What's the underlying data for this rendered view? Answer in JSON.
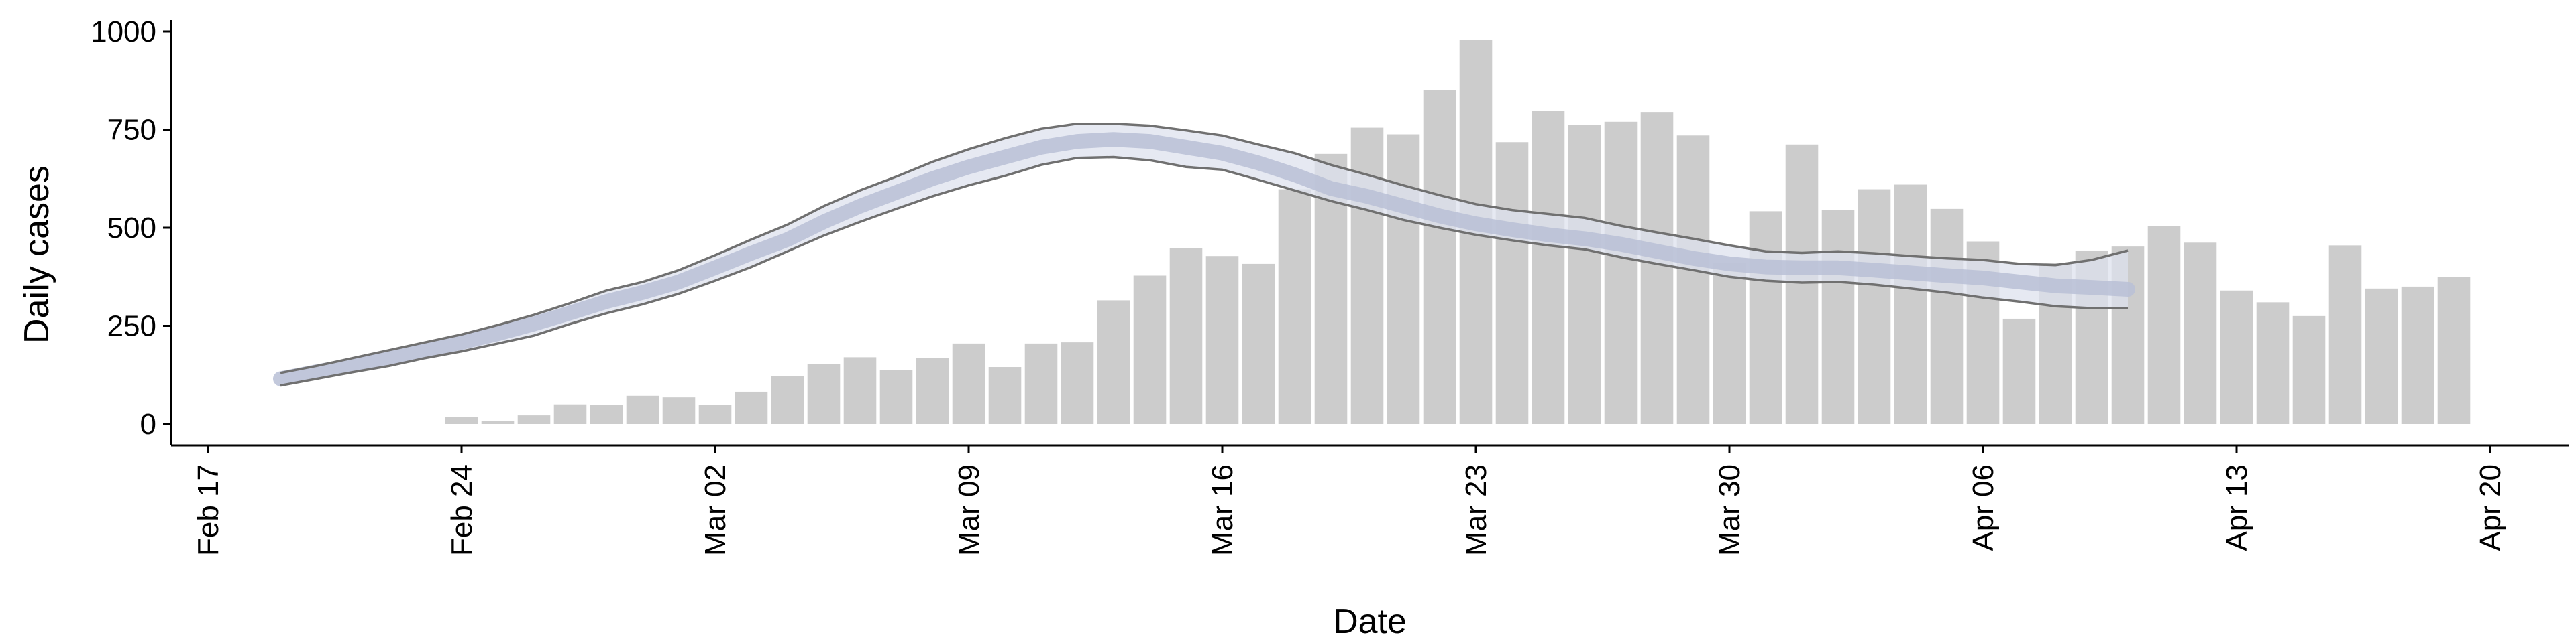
{
  "chart_data": {
    "type": "bar",
    "xlabel": "Date",
    "ylabel": "Daily cases",
    "ylim": [
      -50,
      1020
    ],
    "xlim": [
      "2020-02-17",
      "2020-04-21"
    ],
    "yticks": [
      0,
      250,
      500,
      750,
      1000
    ],
    "xticks": [
      "2020-02-17",
      "2020-02-24",
      "2020-03-02",
      "2020-03-09",
      "2020-03-16",
      "2020-03-23",
      "2020-03-30",
      "2020-04-06",
      "2020-04-13",
      "2020-04-20"
    ],
    "xtick_labels": [
      "Feb 17",
      "Feb 24",
      "Mar 02",
      "Mar 09",
      "Mar 16",
      "Mar 23",
      "Mar 30",
      "Apr 06",
      "Apr 13",
      "Apr 20"
    ],
    "grid": false,
    "legend": "none",
    "colors": {
      "bars": "#cccccc",
      "band": "#dde2ee",
      "median": "#b8c0d6",
      "bounds": "#707070",
      "axis": "#000000"
    },
    "bars": {
      "dates": [
        "2020-02-24",
        "2020-02-25",
        "2020-02-26",
        "2020-02-27",
        "2020-02-28",
        "2020-02-29",
        "2020-03-01",
        "2020-03-02",
        "2020-03-03",
        "2020-03-04",
        "2020-03-05",
        "2020-03-06",
        "2020-03-07",
        "2020-03-08",
        "2020-03-09",
        "2020-03-10",
        "2020-03-11",
        "2020-03-12",
        "2020-03-13",
        "2020-03-14",
        "2020-03-15",
        "2020-03-16",
        "2020-03-17",
        "2020-03-18",
        "2020-03-19",
        "2020-03-20",
        "2020-03-21",
        "2020-03-22",
        "2020-03-23",
        "2020-03-24",
        "2020-03-25",
        "2020-03-26",
        "2020-03-27",
        "2020-03-28",
        "2020-03-29",
        "2020-03-30",
        "2020-03-31",
        "2020-04-01",
        "2020-04-02",
        "2020-04-03",
        "2020-04-04",
        "2020-04-05",
        "2020-04-06",
        "2020-04-07",
        "2020-04-08",
        "2020-04-09",
        "2020-04-10",
        "2020-04-11",
        "2020-04-12",
        "2020-04-13",
        "2020-04-14",
        "2020-04-15",
        "2020-04-16",
        "2020-04-17",
        "2020-04-18",
        "2020-04-19"
      ],
      "values": [
        18,
        8,
        22,
        50,
        48,
        72,
        68,
        48,
        82,
        122,
        152,
        170,
        138,
        168,
        205,
        145,
        205,
        208,
        315,
        378,
        448,
        428,
        408,
        598,
        688,
        755,
        738,
        850,
        978,
        718,
        798,
        762,
        770,
        795,
        735,
        410,
        542,
        712,
        545,
        598,
        610,
        548,
        465,
        268,
        410,
        442,
        452,
        505,
        462,
        340,
        310,
        275,
        455,
        345,
        350,
        375
      ]
    },
    "estimate": {
      "dates": [
        "2020-02-19",
        "2020-02-20",
        "2020-02-21",
        "2020-02-22",
        "2020-02-23",
        "2020-02-24",
        "2020-02-25",
        "2020-02-26",
        "2020-02-27",
        "2020-02-28",
        "2020-02-29",
        "2020-03-01",
        "2020-03-02",
        "2020-03-03",
        "2020-03-04",
        "2020-03-05",
        "2020-03-06",
        "2020-03-07",
        "2020-03-08",
        "2020-03-09",
        "2020-03-10",
        "2020-03-11",
        "2020-03-12",
        "2020-03-13",
        "2020-03-14",
        "2020-03-15",
        "2020-03-16",
        "2020-03-17",
        "2020-03-18",
        "2020-03-19",
        "2020-03-20",
        "2020-03-21",
        "2020-03-22",
        "2020-03-23",
        "2020-03-24",
        "2020-03-25",
        "2020-03-26",
        "2020-03-27",
        "2020-03-28",
        "2020-03-29",
        "2020-03-30",
        "2020-03-31",
        "2020-04-01",
        "2020-04-02",
        "2020-04-03",
        "2020-04-04",
        "2020-04-05",
        "2020-04-06",
        "2020-04-07",
        "2020-04-08",
        "2020-04-09",
        "2020-04-10"
      ],
      "median": [
        115,
        133,
        150,
        168,
        188,
        208,
        230,
        255,
        283,
        312,
        335,
        362,
        398,
        435,
        470,
        515,
        555,
        590,
        625,
        655,
        680,
        705,
        720,
        725,
        720,
        705,
        690,
        665,
        635,
        600,
        580,
        555,
        530,
        510,
        495,
        482,
        472,
        458,
        440,
        422,
        408,
        400,
        398,
        398,
        392,
        385,
        378,
        372,
        362,
        352,
        348,
        343
      ],
      "upper": [
        130,
        148,
        168,
        188,
        208,
        228,
        252,
        278,
        308,
        340,
        362,
        392,
        430,
        470,
        508,
        555,
        595,
        630,
        668,
        700,
        728,
        752,
        765,
        765,
        760,
        748,
        735,
        712,
        690,
        660,
        635,
        608,
        583,
        560,
        545,
        535,
        525,
        505,
        488,
        472,
        455,
        440,
        436,
        440,
        435,
        428,
        422,
        418,
        408,
        405,
        418,
        442
      ],
      "lower": [
        98,
        115,
        132,
        148,
        168,
        185,
        205,
        225,
        255,
        282,
        305,
        332,
        365,
        400,
        440,
        480,
        515,
        548,
        580,
        608,
        632,
        660,
        678,
        680,
        672,
        655,
        648,
        622,
        595,
        568,
        545,
        520,
        500,
        482,
        468,
        455,
        445,
        425,
        408,
        392,
        375,
        365,
        360,
        362,
        355,
        345,
        335,
        322,
        312,
        300,
        295,
        295
      ]
    }
  }
}
